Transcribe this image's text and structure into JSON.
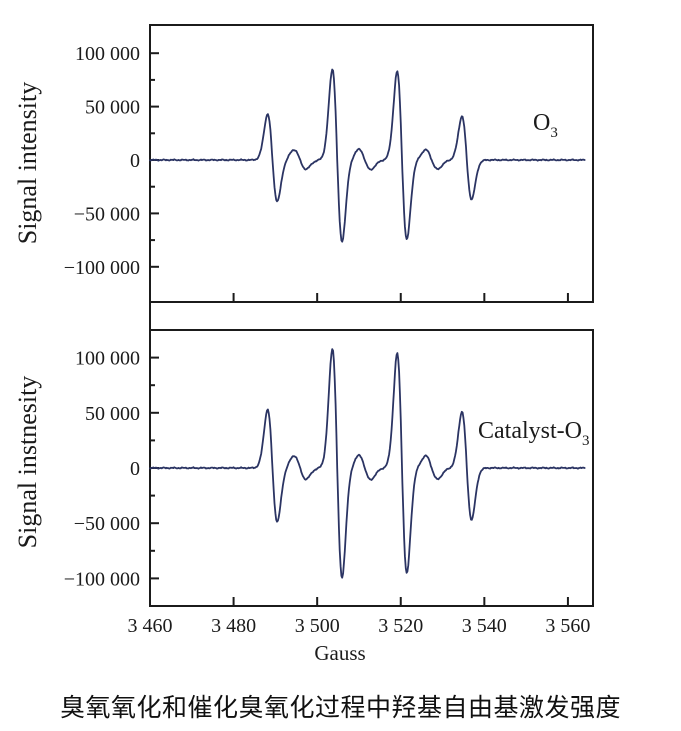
{
  "figure": {
    "caption": "臭氧氧化和催化臭氧化过程中羟基自由基激发强度"
  },
  "chart_data": {
    "type": "line",
    "xlabel": "Gauss",
    "xlim": [
      3460,
      3566
    ],
    "x_ticks": [
      3460,
      3480,
      3500,
      3520,
      3540,
      3560
    ],
    "x_tick_labels": [
      "3 460",
      "3 480",
      "3 500",
      "3 520",
      "3 540",
      "3 560"
    ],
    "y_tick_values": [
      100000,
      50000,
      0,
      -50000,
      -100000
    ],
    "y_tick_labels": [
      "100 000",
      "50 000",
      "0",
      "−50 000",
      "−100 000"
    ],
    "ylim": [
      -130000,
      127000
    ],
    "grid": false,
    "legend_position": "none",
    "line_color": "#2b3463",
    "frame_color": "#1b1b1b",
    "panels": [
      {
        "name": "O3",
        "ylabel": "Signal intensity",
        "annotation": {
          "main": "O",
          "sub": "3"
        },
        "peak_centers_gauss": [
          3489.3,
          3504.8,
          3520.3,
          3535.8
        ],
        "peak_amplitudes": [
          43000,
          85000,
          83000,
          41000
        ],
        "peak_intensity_pattern": "1:2:2:1",
        "hyperfine_splitting_gauss": 15.5,
        "linewidth_gauss": 1.15,
        "negative_lobe_ratio": 0.9,
        "satellite_centers_gauss": [
          3495.9,
          3511.4,
          3527.4
        ],
        "satellite_amplitudes": [
          9500,
          10000,
          9500
        ],
        "satellite_width_gauss": 1.4
      },
      {
        "name": "Catalyst-O3",
        "ylabel": "Signal instnesity",
        "annotation": {
          "main": "Catalyst-O",
          "sub": "3"
        },
        "peak_centers_gauss": [
          3489.3,
          3504.8,
          3520.3,
          3535.8
        ],
        "peak_amplitudes": [
          53000,
          108000,
          104000,
          51000
        ],
        "peak_intensity_pattern": "1:2:2:1",
        "hyperfine_splitting_gauss": 15.5,
        "linewidth_gauss": 1.15,
        "negative_lobe_ratio": 0.92,
        "satellite_centers_gauss": [
          3495.9,
          3511.4,
          3527.4
        ],
        "satellite_amplitudes": [
          11000,
          11500,
          11000
        ],
        "satellite_width_gauss": 1.4
      }
    ]
  }
}
